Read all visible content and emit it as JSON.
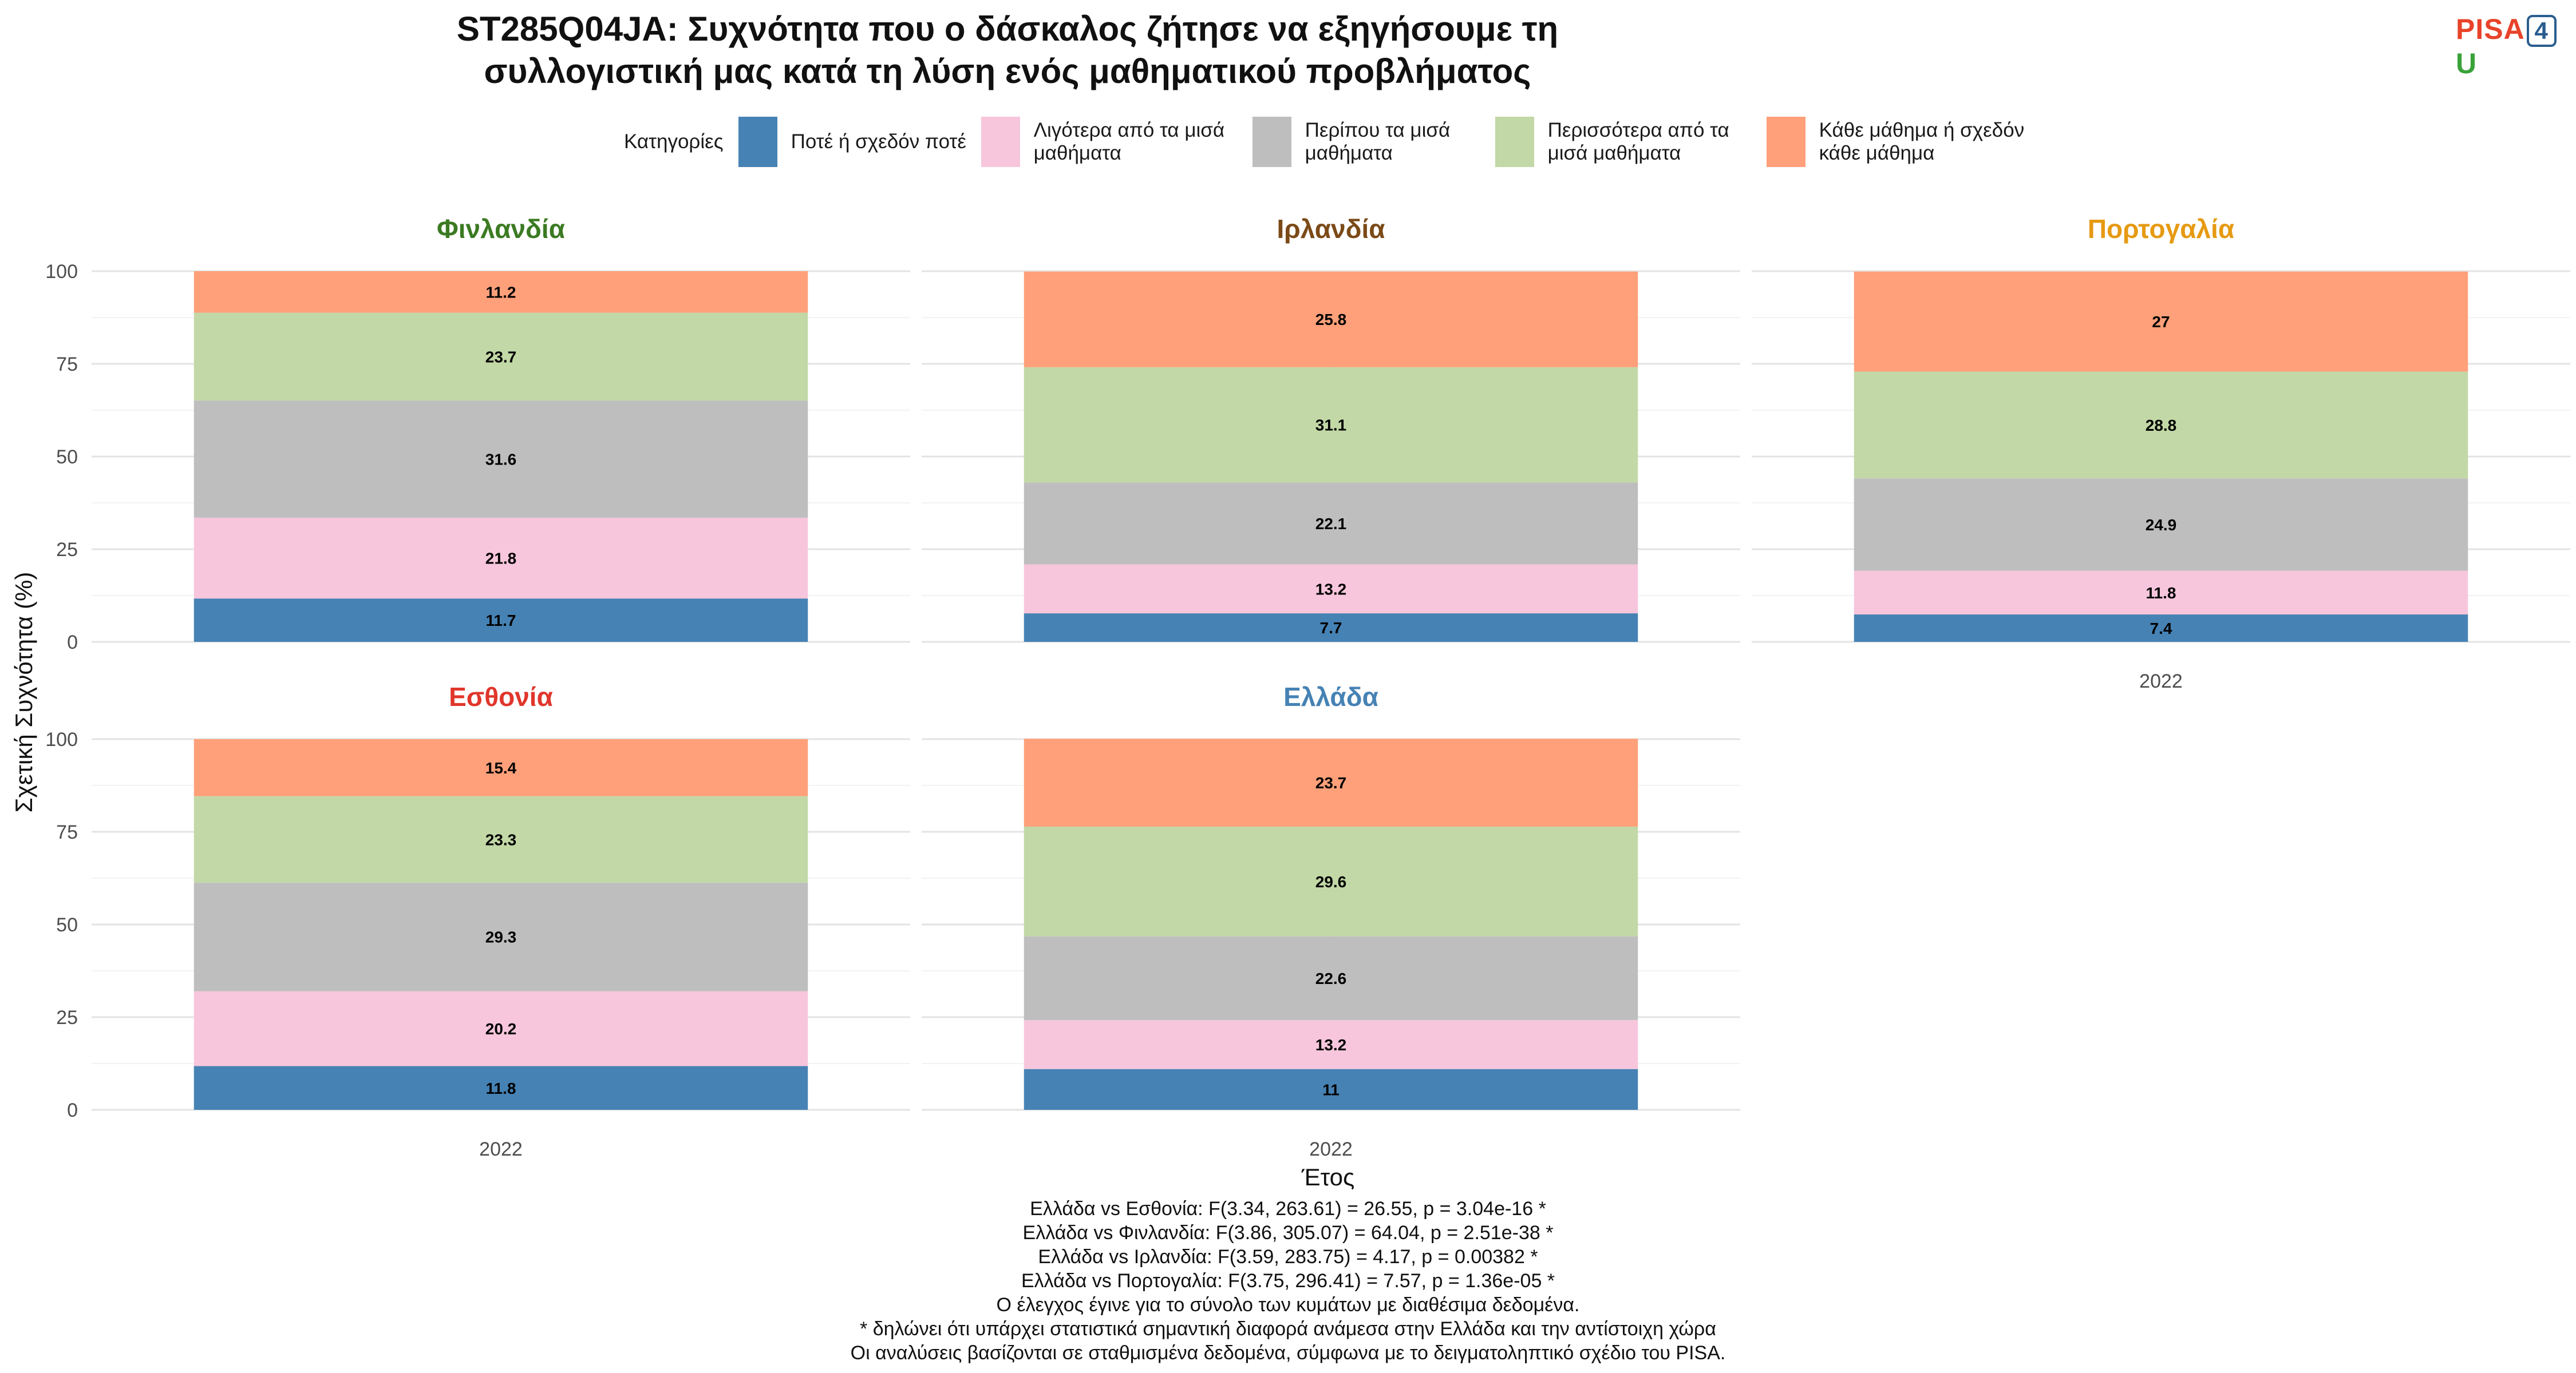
{
  "title_line1": "ST285Q04JA: Συχνότητα που ο δάσκαλος ζήτησε να εξηγήσουμε τη",
  "title_line2": "συλλογιστική μας κατά τη λύση ενός μαθηματικού προβλήματος",
  "logo": {
    "pisa": "PISA",
    "four": "4",
    "u": "U"
  },
  "legend_title": "Κατηγορίες",
  "chart_data": {
    "type": "bar",
    "stacked": true,
    "xlabel": "Έτος",
    "ylabel": "Σχετική Συχνότητα (%)",
    "ylim": [
      0,
      100
    ],
    "yticks": [
      0,
      25,
      50,
      75,
      100
    ],
    "grid": true,
    "legend_position": "top",
    "categories_legend": [
      {
        "name": "Ποτέ ή σχεδόν ποτέ",
        "color": "#4682b4"
      },
      {
        "name": "Λιγότερα από τα μισά μαθήματα",
        "color": "#f7c6dc"
      },
      {
        "name": "Περίπου τα μισά μαθήματα",
        "color": "#bebebe"
      },
      {
        "name": "Περισσότερα από τα μισά μαθήματα",
        "color": "#c2d8a6"
      },
      {
        "name": "Κάθε μάθημα ή σχεδόν κάθε μάθημα",
        "color": "#ffa07a"
      }
    ],
    "panels": [
      {
        "country": "Φινλανδία",
        "color": "#3b7a22",
        "year": "2022",
        "values": [
          11.7,
          21.8,
          31.6,
          23.7,
          11.2
        ]
      },
      {
        "country": "Ιρλανδία",
        "color": "#7b4a17",
        "year": "2022",
        "values": [
          7.7,
          13.2,
          22.1,
          31.1,
          25.8
        ]
      },
      {
        "country": "Πορτογαλία",
        "color": "#e69a12",
        "year": "2022",
        "values": [
          7.4,
          11.8,
          24.9,
          28.8,
          27
        ]
      },
      {
        "country": "Εσθονία",
        "color": "#e0362c",
        "year": "2022",
        "values": [
          11.8,
          20.2,
          29.3,
          23.3,
          15.4
        ]
      },
      {
        "country": "Ελλάδα",
        "color": "#4682b4",
        "year": "2022",
        "values": [
          11,
          13.2,
          22.6,
          29.6,
          23.7
        ]
      }
    ]
  },
  "notes": [
    "Ελλάδα vs Εσθονία: F(3.34, 263.61) = 26.55, p = 3.04e-16 *",
    "Ελλάδα vs Φινλανδία: F(3.86, 305.07) = 64.04, p = 2.51e-38 *",
    "Ελλάδα vs Ιρλανδία: F(3.59, 283.75) = 4.17, p = 0.00382 *",
    "Ελλάδα vs Πορτογαλία: F(3.75, 296.41) = 7.57, p = 1.36e-05 *",
    "Ο έλεγχος έγινε για το σύνολο των κυμάτων με διαθέσιμα δεδομένα.",
    "* δηλώνει ότι υπάρχει στατιστικά σημαντική διαφορά ανάμεσα στην Ελλάδα και την αντίστοιχη χώρα",
    "Οι αναλύσεις βασίζονται σε σταθμισμένα δεδομένα, σύμφωνα με το δειγματοληπτικό σχέδιο του PISA."
  ]
}
